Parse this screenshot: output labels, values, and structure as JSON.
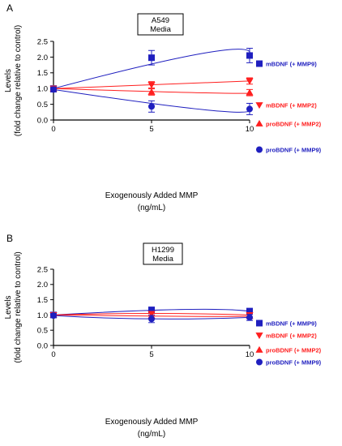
{
  "chart_data": [
    {
      "type": "scatter",
      "panel": "A",
      "title_lines": [
        "A549",
        "Media"
      ],
      "xlabel_lines": [
        "Exogenously Added MMP",
        "(ng/mL)"
      ],
      "ylabel_lines": [
        "Levels",
        "(fold change relative to control)"
      ],
      "xlim": [
        0,
        10
      ],
      "ylim": [
        0,
        2.5
      ],
      "xticks": [
        0,
        5,
        10
      ],
      "yticks": [
        0.0,
        0.5,
        1.0,
        1.5,
        2.0,
        2.5
      ],
      "ytick_labels": [
        "0.0",
        "0.5",
        "1.0",
        "1.5",
        "2.0",
        "2.5"
      ],
      "grid": false,
      "legend_position": "right",
      "series": [
        {
          "name": "mBDNF (+ MMP9)",
          "color": "#1f1fbf",
          "marker": "square",
          "x": [
            0,
            5,
            10
          ],
          "y": [
            1.0,
            1.98,
            2.05
          ],
          "yerr": [
            0.08,
            0.23,
            0.23
          ],
          "fit_peak": [
            7.8,
            2.14
          ]
        },
        {
          "name": "mBDNF (+ MMP2)",
          "color": "#ff1f1f",
          "marker": "triangle-down",
          "x": [
            0,
            5,
            10
          ],
          "y": [
            1.0,
            1.12,
            1.24
          ],
          "yerr": [
            0.07,
            0.1,
            0.1
          ],
          "fit_peak": null
        },
        {
          "name": "proBDNF (+ MMP2)",
          "color": "#ff1f1f",
          "marker": "triangle-up",
          "x": [
            0,
            5,
            10
          ],
          "y": [
            1.0,
            0.89,
            0.87
          ],
          "yerr": [
            0.07,
            0.1,
            0.1
          ],
          "fit_peak": [
            8.0,
            0.86
          ]
        },
        {
          "name": "proBDNF (+ MMP9)",
          "color": "#1f1fbf",
          "marker": "circle",
          "x": [
            0,
            5,
            10
          ],
          "y": [
            0.97,
            0.43,
            0.35
          ],
          "yerr": [
            0.08,
            0.18,
            0.18
          ],
          "fit_peak": [
            7.8,
            0.32
          ]
        }
      ]
    },
    {
      "type": "scatter",
      "panel": "B",
      "title_lines": [
        "H1299",
        "Media"
      ],
      "xlabel_lines": [
        "Exogenously Added MMP",
        "(ng/mL)"
      ],
      "ylabel_lines": [
        "Levels",
        "(fold change relative to control)"
      ],
      "xlim": [
        0,
        10
      ],
      "ylim": [
        0,
        2.5
      ],
      "xticks": [
        0,
        5,
        10
      ],
      "yticks": [
        0.0,
        0.5,
        1.0,
        1.5,
        2.0,
        2.5
      ],
      "ytick_labels": [
        "0.0",
        "0.5",
        "1.0",
        "1.5",
        "2.0",
        "2.5"
      ],
      "grid": false,
      "legend_position": "right",
      "series": [
        {
          "name": "mBDNF (+ MMP9)",
          "color": "#1f1fbf",
          "marker": "square",
          "x": [
            0,
            5,
            10
          ],
          "y": [
            1.0,
            1.16,
            1.12
          ],
          "yerr": [
            0.06,
            0.1,
            0.1
          ],
          "fit_peak": [
            6.5,
            1.18
          ]
        },
        {
          "name": "mBDNF (+ MMP2)",
          "color": "#ff1f1f",
          "marker": "triangle-down",
          "x": [
            0,
            5,
            10
          ],
          "y": [
            1.0,
            1.04,
            1.0
          ],
          "yerr": [
            0.06,
            0.07,
            0.07
          ],
          "fit_peak": [
            5.0,
            1.05
          ]
        },
        {
          "name": "proBDNF (+ MMP2)",
          "color": "#ff1f1f",
          "marker": "triangle-up",
          "x": [
            0,
            5,
            10
          ],
          "y": [
            1.0,
            0.97,
            0.96
          ],
          "yerr": [
            0.06,
            0.07,
            0.07
          ],
          "fit_peak": [
            7.0,
            0.955
          ]
        },
        {
          "name": "proBDNF (+ MMP9)",
          "color": "#1f1fbf",
          "marker": "circle",
          "x": [
            0,
            5,
            10
          ],
          "y": [
            0.98,
            0.87,
            0.92
          ],
          "yerr": [
            0.07,
            0.12,
            0.1
          ],
          "fit_peak": [
            5.0,
            0.87
          ]
        }
      ]
    }
  ]
}
